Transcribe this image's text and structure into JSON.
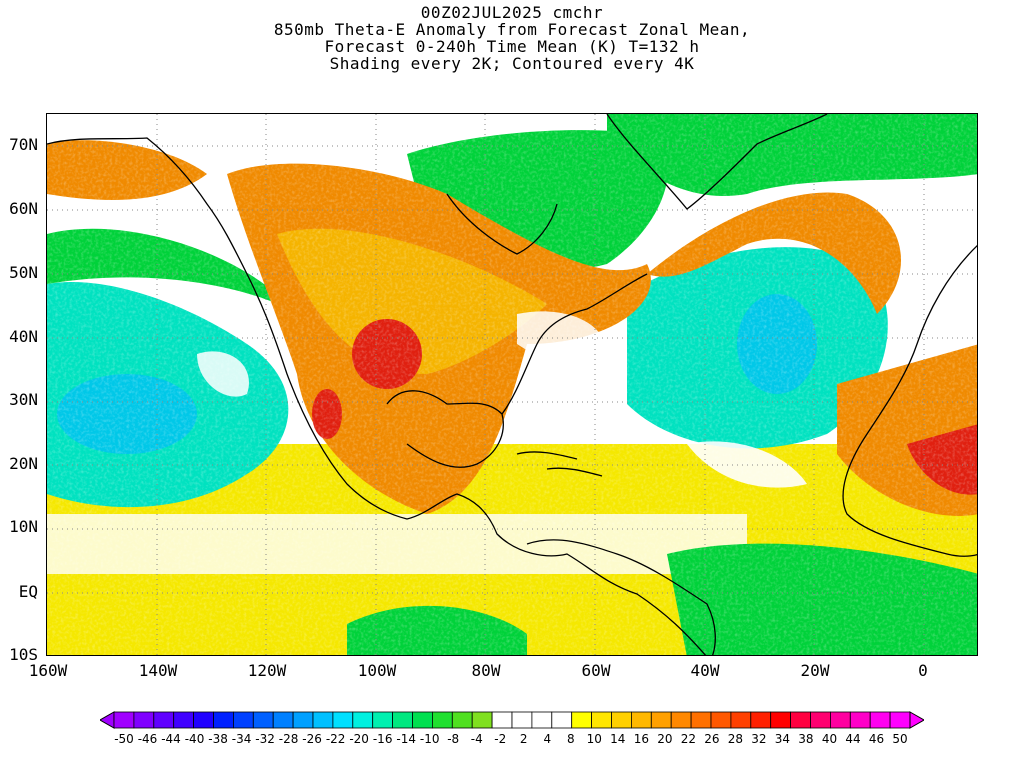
{
  "titles": [
    "00Z02JUL2025 cmchr",
    "850mb Theta-E Anomaly from Forecast Zonal Mean,",
    "Forecast 0-240h Time Mean (K) T=132 h",
    "Shading every 2K; Contoured every 4K"
  ],
  "map": {
    "projection": "lat-lon",
    "lon_range": [
      -160,
      10
    ],
    "lat_range": [
      -10,
      75
    ],
    "background": "#ffffff",
    "coastline_color": "#000000",
    "field_colors": {
      "warm_core": "#e02010",
      "warm": "#f08a00",
      "warm_light": "#f5b400",
      "mild": "#f5e800",
      "neutral": "#ffffff",
      "cool_light": "#80e030",
      "cool": "#00d23a",
      "cold": "#00e2c0",
      "colder": "#00c8e8",
      "coldest": "#20a0f0"
    }
  },
  "lat_labels": [
    "70N",
    "60N",
    "50N",
    "40N",
    "30N",
    "20N",
    "10N",
    "EQ",
    "10S"
  ],
  "lon_labels": [
    "160W",
    "140W",
    "120W",
    "100W",
    "80W",
    "60W",
    "40W",
    "20W",
    "0"
  ],
  "colorbar": {
    "labels": [
      "-50",
      "-46",
      "-44",
      "-40",
      "-38",
      "-34",
      "-32",
      "-28",
      "-26",
      "-22",
      "-20",
      "-16",
      "-14",
      "-10",
      "-8",
      "-4",
      "-2",
      "2",
      "4",
      "8",
      "10",
      "14",
      "16",
      "20",
      "22",
      "26",
      "28",
      "32",
      "34",
      "38",
      "40",
      "44",
      "46",
      "50"
    ],
    "colors": [
      "#a000ff",
      "#8000ff",
      "#6000ff",
      "#4000ff",
      "#2000ff",
      "#0020ff",
      "#0040ff",
      "#0060ff",
      "#0080ff",
      "#00a0ff",
      "#00c0ff",
      "#00e0ff",
      "#00f0e0",
      "#00f0b0",
      "#00e880",
      "#00e050",
      "#20e030",
      "#50e020",
      "#80e020",
      "#ffffff",
      "#ffffff",
      "#ffffff",
      "#ffffff",
      "#ffff00",
      "#ffe600",
      "#ffd000",
      "#ffb800",
      "#ffa000",
      "#ff8800",
      "#ff7000",
      "#ff5800",
      "#ff4000",
      "#ff2000",
      "#ff0000",
      "#ff0040",
      "#ff0070",
      "#ff00a0",
      "#ff00c8",
      "#ff00f0",
      "#ff00ff"
    ]
  }
}
